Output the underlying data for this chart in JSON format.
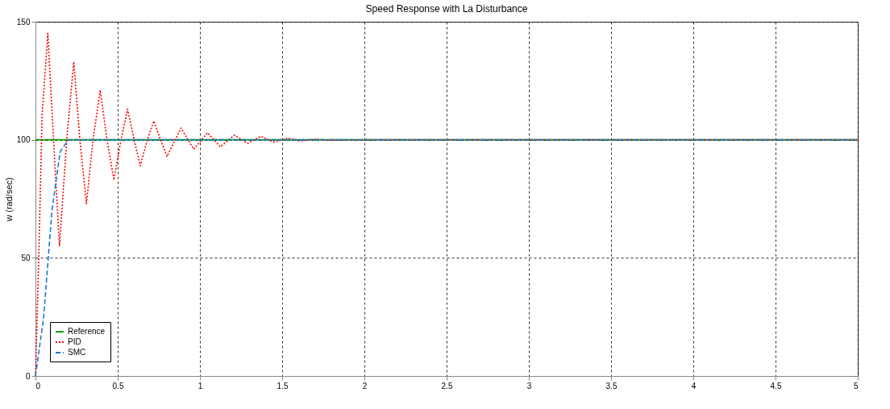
{
  "chart_data": {
    "type": "line",
    "title": "Speed Response with La Disturbance",
    "ylabel": "w (rad/sec)",
    "xlim": [
      0,
      5
    ],
    "ylim": [
      0,
      150
    ],
    "xticks": [
      0,
      0.5,
      1,
      1.5,
      2,
      2.5,
      3,
      3.5,
      4,
      4.5,
      5
    ],
    "yticks": [
      0,
      50,
      100,
      150
    ],
    "grid": true,
    "legend": "bottom left",
    "marker": "none",
    "series": [
      {
        "name": "Reference",
        "color": "#00a000",
        "line_style": "solid",
        "x": [
          0,
          5
        ],
        "values": [
          100,
          100
        ]
      },
      {
        "name": "PID",
        "color": "#ff0000",
        "line_style": "dotted",
        "x": [
          0,
          0.02,
          0.04,
          0.075,
          0.11,
          0.146,
          0.19,
          0.233,
          0.27,
          0.31,
          0.35,
          0.394,
          0.435,
          0.477,
          0.52,
          0.56,
          0.6,
          0.637,
          0.68,
          0.72,
          0.76,
          0.8,
          0.885,
          0.963,
          1.046,
          1.124,
          1.21,
          1.29,
          1.37,
          1.45,
          1.535,
          1.61,
          1.7,
          1.78,
          2,
          5
        ],
        "values": [
          0,
          50,
          110,
          145,
          100,
          55,
          100,
          133,
          100,
          73,
          100,
          121,
          100,
          83,
          100,
          113,
          100,
          89,
          100,
          108,
          100,
          93,
          105,
          96,
          103,
          97,
          102,
          98.5,
          101.5,
          99,
          100.7,
          99.5,
          100.3,
          99.8,
          100,
          100
        ]
      },
      {
        "name": "SMC",
        "color": "#1f77d0",
        "line_style": "dashed",
        "x": [
          0,
          0.05,
          0.1,
          0.15,
          0.2,
          5
        ],
        "values": [
          0,
          25,
          70,
          95,
          100,
          100
        ]
      }
    ]
  }
}
